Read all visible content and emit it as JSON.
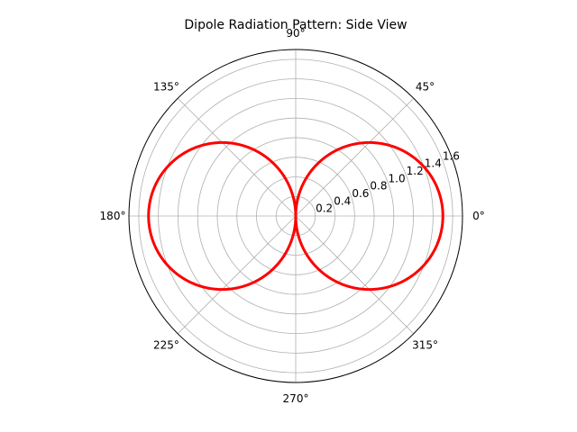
{
  "chart_data": {
    "type": "polar-line",
    "title": "Dipole Radiation Pattern: Side View",
    "angle_unit": "degrees",
    "angle_ticks": [
      0,
      45,
      90,
      135,
      180,
      225,
      270,
      315
    ],
    "angle_tick_labels": [
      "0°",
      "45°",
      "90°",
      "135°",
      "180°",
      "225°",
      "270°",
      "315°"
    ],
    "radial_ticks": [
      0.2,
      0.4,
      0.6,
      0.8,
      1.0,
      1.2,
      1.4,
      1.6
    ],
    "radial_tick_labels": [
      "0.2",
      "0.4",
      "0.6",
      "0.8",
      "1.0",
      "1.2",
      "1.4",
      "1.6"
    ],
    "rlim": [
      0,
      1.7
    ],
    "radial_label_angle": 22.5,
    "grid": true,
    "series": [
      {
        "color": "#ff0000",
        "curve": "r = 1.5 · |cos θ|",
        "theta": [
          0,
          15,
          30,
          45,
          60,
          75,
          90,
          105,
          120,
          135,
          150,
          165,
          180,
          195,
          210,
          225,
          240,
          255,
          270,
          285,
          300,
          315,
          330,
          345,
          360
        ],
        "r": [
          1.5,
          1.449,
          1.299,
          1.061,
          0.75,
          0.388,
          0.0,
          0.388,
          0.75,
          1.061,
          1.299,
          1.449,
          1.5,
          1.449,
          1.299,
          1.061,
          0.75,
          0.388,
          0.0,
          0.388,
          0.75,
          1.061,
          1.299,
          1.449,
          1.5
        ]
      }
    ]
  }
}
